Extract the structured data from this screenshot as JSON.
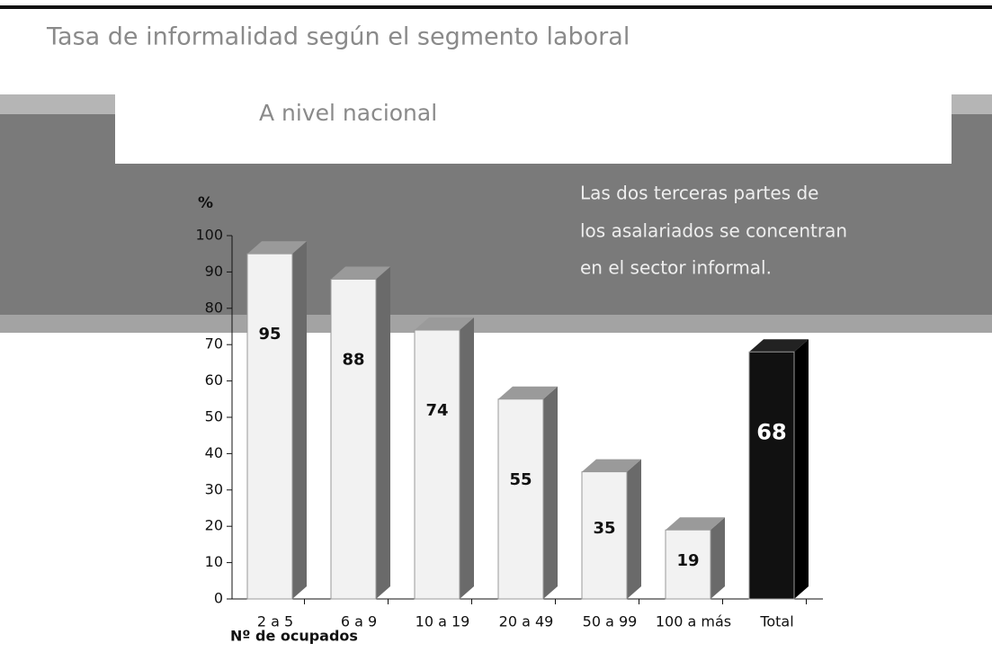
{
  "chart_data": {
    "type": "bar3d",
    "title": "Tasa de informalidad según el segmento laboral",
    "subtitle": "A nivel nacional",
    "annotation": [
      "Las dos terceras partes de",
      "los asalariados se concentran",
      "en el sector informal."
    ],
    "y_label": "%",
    "x_label": "Nº de ocupados",
    "categories": [
      "2 a 5",
      "6 a 9",
      "10 a 19",
      "20 a 49",
      "50 a 99",
      "100 a más",
      "Total"
    ],
    "values": [
      95,
      88,
      74,
      55,
      35,
      19,
      68
    ],
    "colors": [
      "#f2f2f2",
      "#f2f2f2",
      "#f2f2f2",
      "#f2f2f2",
      "#f2f2f2",
      "#f2f2f2",
      "#111111"
    ],
    "ylim": [
      0,
      100
    ],
    "yticks": [
      0,
      10,
      20,
      30,
      40,
      50,
      60,
      70,
      80,
      90,
      100
    ]
  }
}
